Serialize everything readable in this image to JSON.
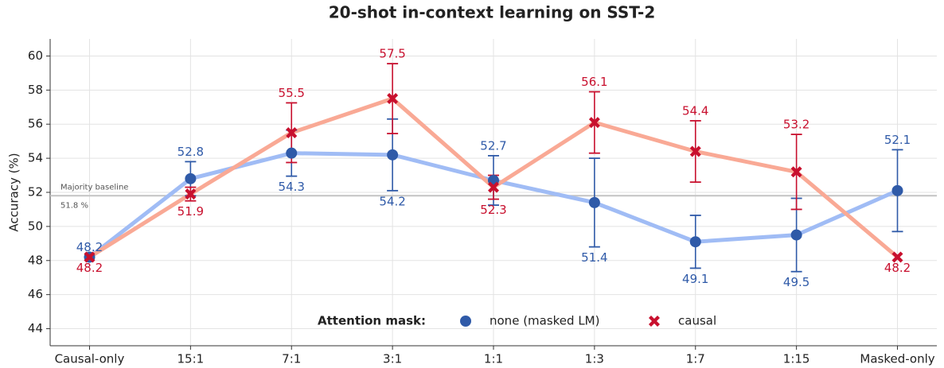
{
  "chart_data": {
    "type": "line",
    "title": "20-shot in-context learning on SST-2",
    "y_label": "Accuracy (%)",
    "categories": [
      "Causal-only",
      "15:1",
      "7:1",
      "3:1",
      "1:1",
      "1:3",
      "1:7",
      "1:15",
      "Masked-only"
    ],
    "series": [
      {
        "name": "none (masked LM)",
        "color": "#2f5aa8",
        "line_color": "#a0bcf5",
        "marker": "circle",
        "values": [
          48.2,
          52.8,
          54.3,
          54.2,
          52.7,
          51.4,
          49.1,
          49.5,
          52.1
        ],
        "errors": [
          null,
          1.0,
          1.35,
          2.1,
          1.45,
          2.6,
          1.55,
          2.15,
          2.4
        ]
      },
      {
        "name": "causal",
        "color": "#c8102e",
        "line_color": "#f9a995",
        "marker": "x",
        "values": [
          48.2,
          51.9,
          55.5,
          57.5,
          52.3,
          56.1,
          54.4,
          53.2,
          48.2
        ],
        "errors": [
          null,
          0.4,
          1.75,
          2.05,
          0.7,
          1.8,
          1.8,
          2.2,
          null
        ]
      }
    ],
    "baseline": {
      "name": "Majority baseline",
      "value": 51.8,
      "label": "51.8 %"
    },
    "legend_title": "Attention mask:",
    "legend": "lower center",
    "ylim": [
      43,
      61
    ],
    "yticks": [
      44,
      46,
      48,
      50,
      52,
      54,
      56,
      58,
      60
    ],
    "grid": true
  }
}
